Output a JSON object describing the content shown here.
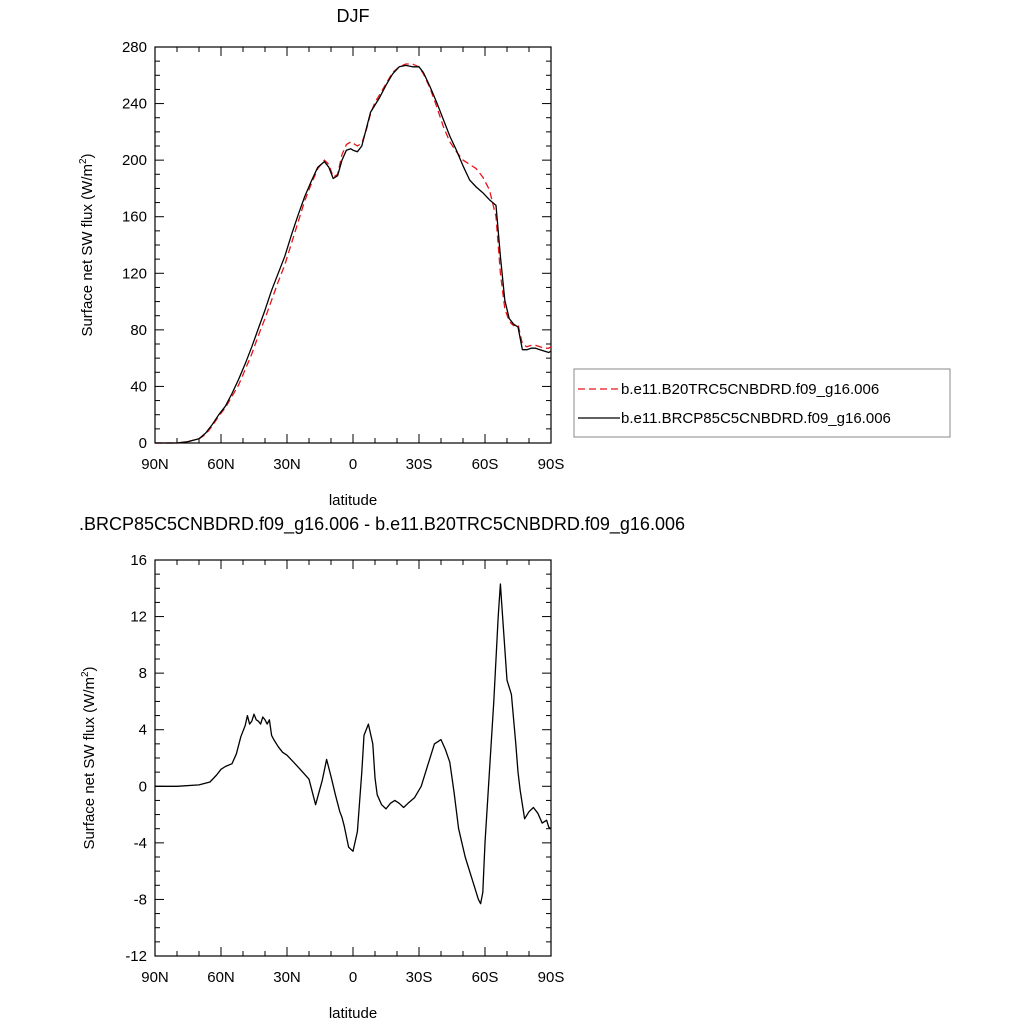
{
  "chart_data": [
    {
      "type": "line",
      "title": "DJF",
      "xlabel": "latitude",
      "ylabel": "Surface net SW flux (W/m²)",
      "ylabel_main": "Surface net SW flux (W/m",
      "ylabel_sup": "2",
      "ylabel_end": ")",
      "xlim": [
        90,
        -90
      ],
      "ylim": [
        0,
        280
      ],
      "x_ticks": [
        90,
        60,
        30,
        0,
        -30,
        -60,
        -90
      ],
      "x_tick_labels": [
        "90N",
        "60N",
        "30N",
        "0",
        "30S",
        "60S",
        "90S"
      ],
      "y_ticks": [
        0,
        40,
        80,
        120,
        160,
        200,
        240,
        280
      ],
      "y_tick_labels": [
        "0",
        "40",
        "80",
        "120",
        "160",
        "200",
        "240",
        "280"
      ],
      "legend_position": "right",
      "series": [
        {
          "name": "b.e11.B20TRC5CNBDRD.f09_g16.006",
          "color": "#e8141a",
          "dash": "dashed",
          "x": [
            90,
            85,
            80,
            75,
            70,
            67,
            64,
            61,
            58,
            55,
            52,
            49,
            46,
            43,
            40,
            37,
            34,
            31,
            28,
            25,
            22,
            19,
            16,
            13,
            11,
            9,
            7,
            5,
            3,
            1,
            0,
            -2,
            -4,
            -6,
            -8,
            -10,
            -12,
            -15,
            -18,
            -21,
            -24,
            -27,
            -30,
            -32,
            -35,
            -38,
            -41,
            -44,
            -47,
            -50,
            -53,
            -56,
            -59,
            -62,
            -65,
            -67,
            -69,
            -71,
            -73,
            -75,
            -77,
            -79,
            -81,
            -83,
            -85,
            -87,
            -89,
            -90
          ],
          "y": [
            0,
            0,
            0,
            1,
            3,
            6,
            12,
            19,
            25,
            33,
            41,
            52,
            63,
            76,
            88,
            101,
            114,
            126,
            141,
            156,
            171,
            183,
            194,
            200,
            197,
            188,
            190,
            204,
            211,
            213,
            212,
            210,
            212,
            221,
            233,
            241,
            246,
            254,
            262,
            266,
            268,
            268,
            266,
            261,
            251,
            238,
            224,
            213,
            206,
            200,
            197,
            194,
            188,
            179,
            160,
            120,
            95,
            86,
            83,
            84,
            70,
            68,
            69,
            69,
            68,
            67,
            67,
            68
          ]
        },
        {
          "name": "b.e11.BRCP85C5CNBDRD.f09_g16.006",
          "color": "#000000",
          "dash": "solid",
          "x": [
            90,
            85,
            80,
            75,
            70,
            67,
            64,
            61,
            58,
            55,
            52,
            49,
            46,
            43,
            40,
            37,
            34,
            31,
            28,
            25,
            22,
            19,
            16,
            13,
            11,
            9,
            7,
            5,
            3,
            1,
            0,
            -2,
            -4,
            -6,
            -8,
            -10,
            -12,
            -15,
            -18,
            -21,
            -24,
            -27,
            -30,
            -32,
            -35,
            -38,
            -41,
            -44,
            -47,
            -50,
            -53,
            -56,
            -59,
            -62,
            -65,
            -67,
            -69,
            -71,
            -73,
            -75,
            -77,
            -79,
            -81,
            -83,
            -85,
            -87,
            -89,
            -90
          ],
          "y": [
            0,
            0,
            0,
            1,
            3,
            7,
            13,
            20,
            26,
            35,
            45,
            56,
            68,
            81,
            94,
            108,
            120,
            132,
            147,
            161,
            174,
            185,
            195,
            199,
            195,
            187,
            189,
            200,
            207,
            208,
            207,
            206,
            210,
            222,
            234,
            239,
            244,
            253,
            261,
            266,
            267,
            266,
            266,
            262,
            252,
            241,
            229,
            217,
            207,
            196,
            186,
            181,
            177,
            172,
            168,
            132,
            101,
            88,
            84,
            82,
            66,
            66,
            67,
            67,
            66,
            65,
            64,
            65
          ]
        }
      ]
    },
    {
      "type": "line",
      "title": ".BRCP85C5CNBDRD.f09_g16.006 - b.e11.B20TRC5CNBDRD.f09_g16.006",
      "xlabel": "latitude",
      "ylabel": "Surface net SW flux (W/m²)",
      "ylabel_main": "Surface net SW flux (W/m",
      "ylabel_sup": "2",
      "ylabel_end": ")",
      "xlim": [
        90,
        -90
      ],
      "ylim": [
        -12,
        16
      ],
      "x_ticks": [
        90,
        60,
        30,
        0,
        -30,
        -60,
        -90
      ],
      "x_tick_labels": [
        "90N",
        "60N",
        "30N",
        "0",
        "30S",
        "60S",
        "90S"
      ],
      "y_ticks": [
        -12,
        -8,
        -4,
        0,
        4,
        8,
        12,
        16
      ],
      "y_tick_labels": [
        "-12",
        "-8",
        "-4",
        "0",
        "4",
        "8",
        "12",
        "16"
      ],
      "series": [
        {
          "color": "#000000",
          "dash": "solid",
          "x": [
            90,
            80,
            70,
            65,
            62,
            60,
            58,
            55,
            53,
            51,
            49,
            48,
            47,
            46,
            45,
            44,
            43,
            42,
            41,
            40,
            39,
            38,
            37,
            36,
            34,
            32,
            30,
            27,
            24,
            20,
            17,
            14,
            12,
            10,
            8,
            6,
            5,
            4,
            2,
            0,
            -2,
            -4,
            -5,
            -7,
            -9,
            -10,
            -11,
            -13,
            -15,
            -17,
            -19,
            -21,
            -23,
            -25,
            -28,
            -31,
            -34,
            -37,
            -40,
            -42,
            -44,
            -46,
            -48,
            -51,
            -54,
            -57,
            -58,
            -59,
            -60,
            -62,
            -64,
            -66,
            -67,
            -68,
            -70,
            -72,
            -74,
            -75,
            -76,
            -78,
            -80,
            -82,
            -84,
            -86,
            -88,
            -89,
            -90
          ],
          "y": [
            0,
            0,
            0.1,
            0.3,
            0.8,
            1.2,
            1.4,
            1.6,
            2.3,
            3.5,
            4.3,
            5.0,
            4.4,
            4.6,
            5.1,
            4.7,
            4.6,
            4.4,
            4.9,
            4.7,
            4.4,
            4.7,
            3.6,
            3.3,
            2.8,
            2.4,
            2.2,
            1.7,
            1.2,
            0.5,
            -1.3,
            0.4,
            1.9,
            0.7,
            -0.6,
            -1.8,
            -2.2,
            -2.8,
            -4.3,
            -4.6,
            -3.2,
            1.0,
            3.6,
            4.4,
            3.0,
            0.6,
            -0.6,
            -1.3,
            -1.6,
            -1.2,
            -1.0,
            -1.2,
            -1.5,
            -1.2,
            -0.8,
            0.0,
            1.5,
            3.0,
            3.3,
            2.6,
            1.7,
            -0.5,
            -3.0,
            -5.0,
            -6.5,
            -8.0,
            -8.3,
            -7.5,
            -4.0,
            1.0,
            6.0,
            12.0,
            14.3,
            12.0,
            7.5,
            6.5,
            3.0,
            1.0,
            -0.3,
            -2.3,
            -1.8,
            -1.5,
            -1.9,
            -2.6,
            -2.4,
            -2.9,
            -3.0
          ]
        }
      ]
    }
  ]
}
